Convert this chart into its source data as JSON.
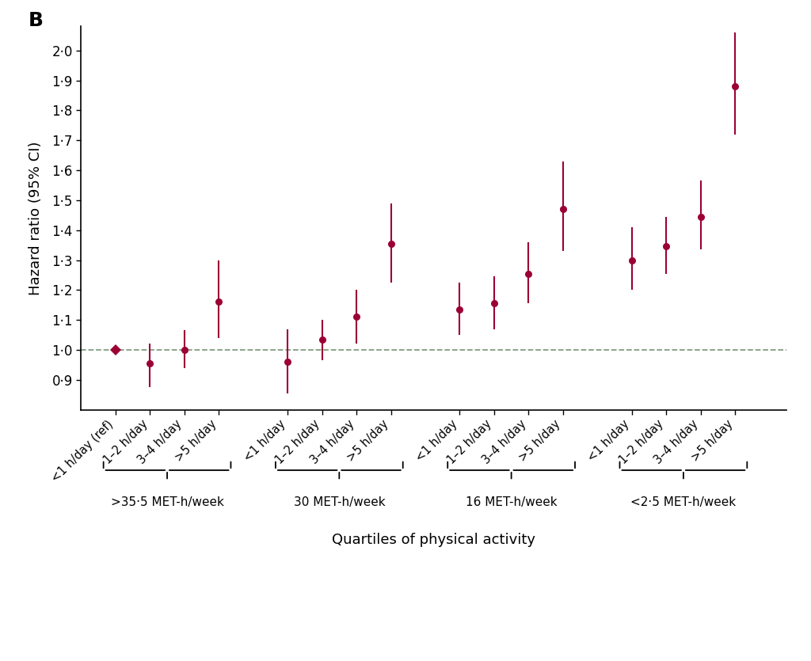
{
  "panel_label": "B",
  "ylabel": "Hazard ratio (95% CI)",
  "xlabel": "Quartiles of physical activity",
  "point_color": "#9B0035",
  "dashed_line_color": "#6B8C6B",
  "background_color": "#ffffff",
  "ylim": [
    0.8,
    2.08
  ],
  "yticks": [
    0.9,
    1.0,
    1.1,
    1.2,
    1.3,
    1.4,
    1.5,
    1.6,
    1.7,
    1.8,
    1.9,
    2.0
  ],
  "ytick_labels": [
    "0·9",
    "1·0",
    "1·1",
    "1·2",
    "1·3",
    "1·4",
    "1·5",
    "1·6",
    "1·7",
    "1·8",
    "1·9",
    "2·0"
  ],
  "groups": [
    {
      "label": ">35·5 MET-h/week",
      "x_positions": [
        1,
        2,
        3,
        4
      ],
      "tick_labels": [
        "<1 h/day (ref)",
        "1–2 h/day",
        "3–4 h/day",
        ">5 h/day"
      ],
      "hr": [
        1.0,
        0.955,
        1.0,
        1.16
      ],
      "ci_low": [
        1.0,
        0.875,
        0.94,
        1.04
      ],
      "ci_high": [
        1.0,
        1.02,
        1.065,
        1.3
      ],
      "is_ref": [
        true,
        false,
        false,
        false
      ]
    },
    {
      "label": "30 MET-h/week",
      "x_positions": [
        6,
        7,
        8,
        9
      ],
      "tick_labels": [
        "<1 h/day",
        "1–2 h/day",
        "3–4 h/day",
        ">5 h/day"
      ],
      "hr": [
        0.96,
        1.035,
        1.11,
        1.355
      ],
      "ci_low": [
        0.855,
        0.965,
        1.02,
        1.225
      ],
      "ci_high": [
        1.07,
        1.1,
        1.2,
        1.49
      ],
      "is_ref": [
        false,
        false,
        false,
        false
      ]
    },
    {
      "label": "16 MET-h/week",
      "x_positions": [
        11,
        12,
        13,
        14
      ],
      "tick_labels": [
        "<1 h/day",
        "1–2 h/day",
        "3–4 h/day",
        ">5 h/day"
      ],
      "hr": [
        1.135,
        1.155,
        1.255,
        1.47
      ],
      "ci_low": [
        1.05,
        1.07,
        1.155,
        1.33
      ],
      "ci_high": [
        1.225,
        1.245,
        1.36,
        1.63
      ],
      "is_ref": [
        false,
        false,
        false,
        false
      ]
    },
    {
      "label": "<2·5 MET-h/week",
      "x_positions": [
        16,
        17,
        18,
        19
      ],
      "tick_labels": [
        "<1 h/day",
        "1–2 h/day",
        "3–4 h/day",
        ">5 h/day"
      ],
      "hr": [
        1.3,
        1.345,
        1.445,
        1.88
      ],
      "ci_low": [
        1.2,
        1.255,
        1.335,
        1.72
      ],
      "ci_high": [
        1.41,
        1.445,
        1.565,
        2.06
      ],
      "is_ref": [
        false,
        false,
        false,
        false
      ]
    }
  ]
}
